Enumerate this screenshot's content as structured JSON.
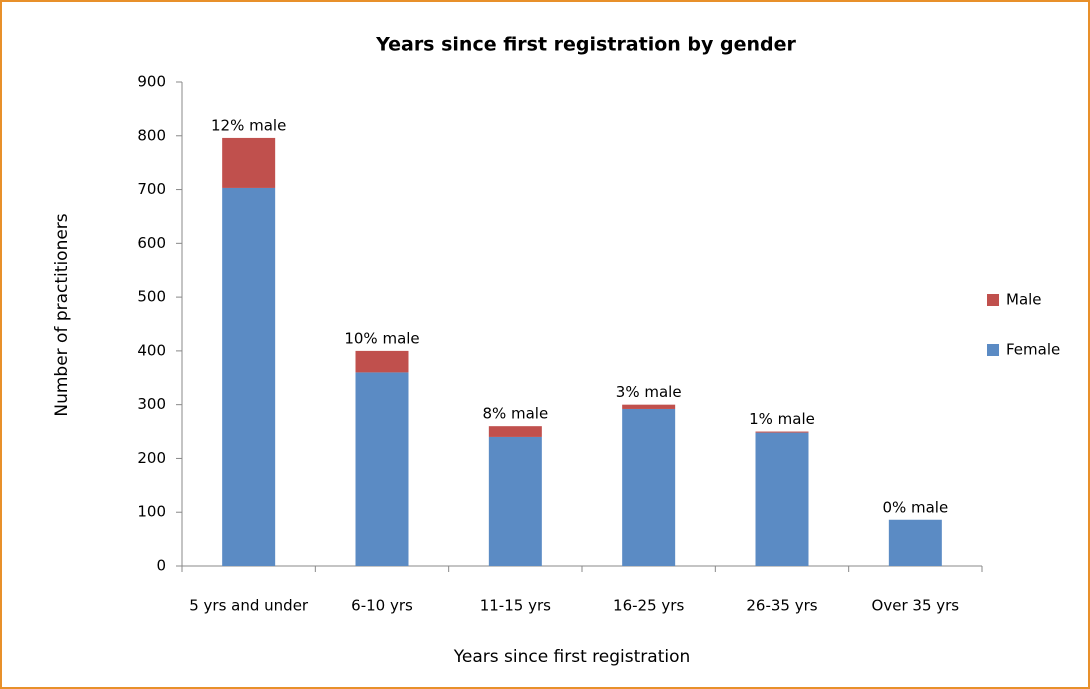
{
  "chart_data": {
    "type": "stacked_bar",
    "title": "Years since first registration by gender",
    "x_label": "Years since first registration",
    "y_label": "Number of practitioners",
    "categories": [
      "5 yrs and under",
      "6-10 yrs",
      "11-15 yrs",
      "16-25 yrs",
      "26-35 yrs",
      "Over 35 yrs"
    ],
    "series": [
      {
        "name": "Female",
        "color": "#5b8bc4",
        "values": [
          703,
          360,
          240,
          292,
          248,
          86
        ]
      },
      {
        "name": "Male",
        "color": "#c0504d",
        "values": [
          93,
          40,
          20,
          8,
          2,
          0
        ]
      }
    ],
    "annotations": [
      "12% male",
      "10% male",
      "8% male",
      "3% male",
      "1% male",
      "0% male"
    ],
    "ylim": [
      0,
      900
    ],
    "yticks": [
      0,
      100,
      200,
      300,
      400,
      500,
      600,
      700,
      800,
      900
    ],
    "legend": "right"
  }
}
